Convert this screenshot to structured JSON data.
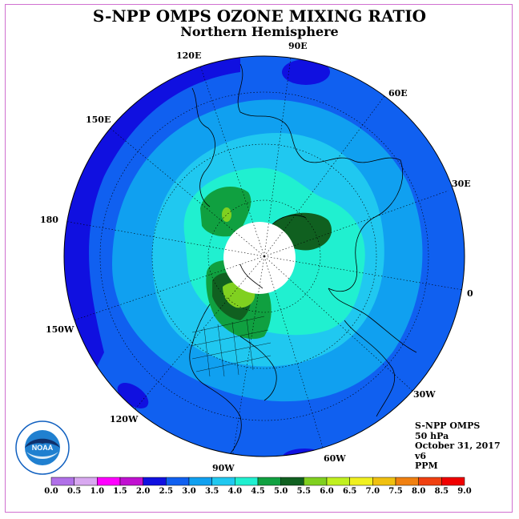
{
  "title": "S-NPP OMPS OZONE MIXING RATIO",
  "subtitle": "Northern Hemisphere",
  "longitude_labels": [
    "90E",
    "60E",
    "30E",
    "0",
    "30W",
    "60W",
    "90W",
    "120W",
    "150W",
    "180",
    "150E",
    "120E"
  ],
  "info": {
    "instrument": "S-NPP OMPS",
    "level": "50 hPa",
    "date": "October 31, 2017",
    "version": "v6",
    "units": "PPM"
  },
  "logo": {
    "text": "NOAA"
  },
  "colorbar": {
    "ticks": [
      "0.0",
      "0.5",
      "1.0",
      "1.5",
      "2.0",
      "2.5",
      "3.0",
      "3.5",
      "4.0",
      "4.5",
      "5.0",
      "5.5",
      "6.0",
      "6.5",
      "7.0",
      "7.5",
      "8.0",
      "8.5",
      "9.0"
    ],
    "colors": [
      "#b070e8",
      "#d8a8f0",
      "#ff00ff",
      "#c010d0",
      "#1010e0",
      "#1060f0",
      "#10a0f0",
      "#20c8f0",
      "#20f0d0",
      "#10a040",
      "#106020",
      "#80d020",
      "#c0f020",
      "#f0f020",
      "#f0c010",
      "#f08010",
      "#f04010",
      "#f00000",
      "#906040"
    ]
  },
  "map_colors": {
    "ring_outer": "#1010e0",
    "band_2_5": "#1060f0",
    "band_3_0": "#10a0f0",
    "band_3_5": "#20c8f0",
    "band_4_0": "#20f0d0",
    "band_4_5": "#10a040",
    "band_5_0": "#106020",
    "band_5_5": "#80d020",
    "no_data": "#ffffff"
  }
}
